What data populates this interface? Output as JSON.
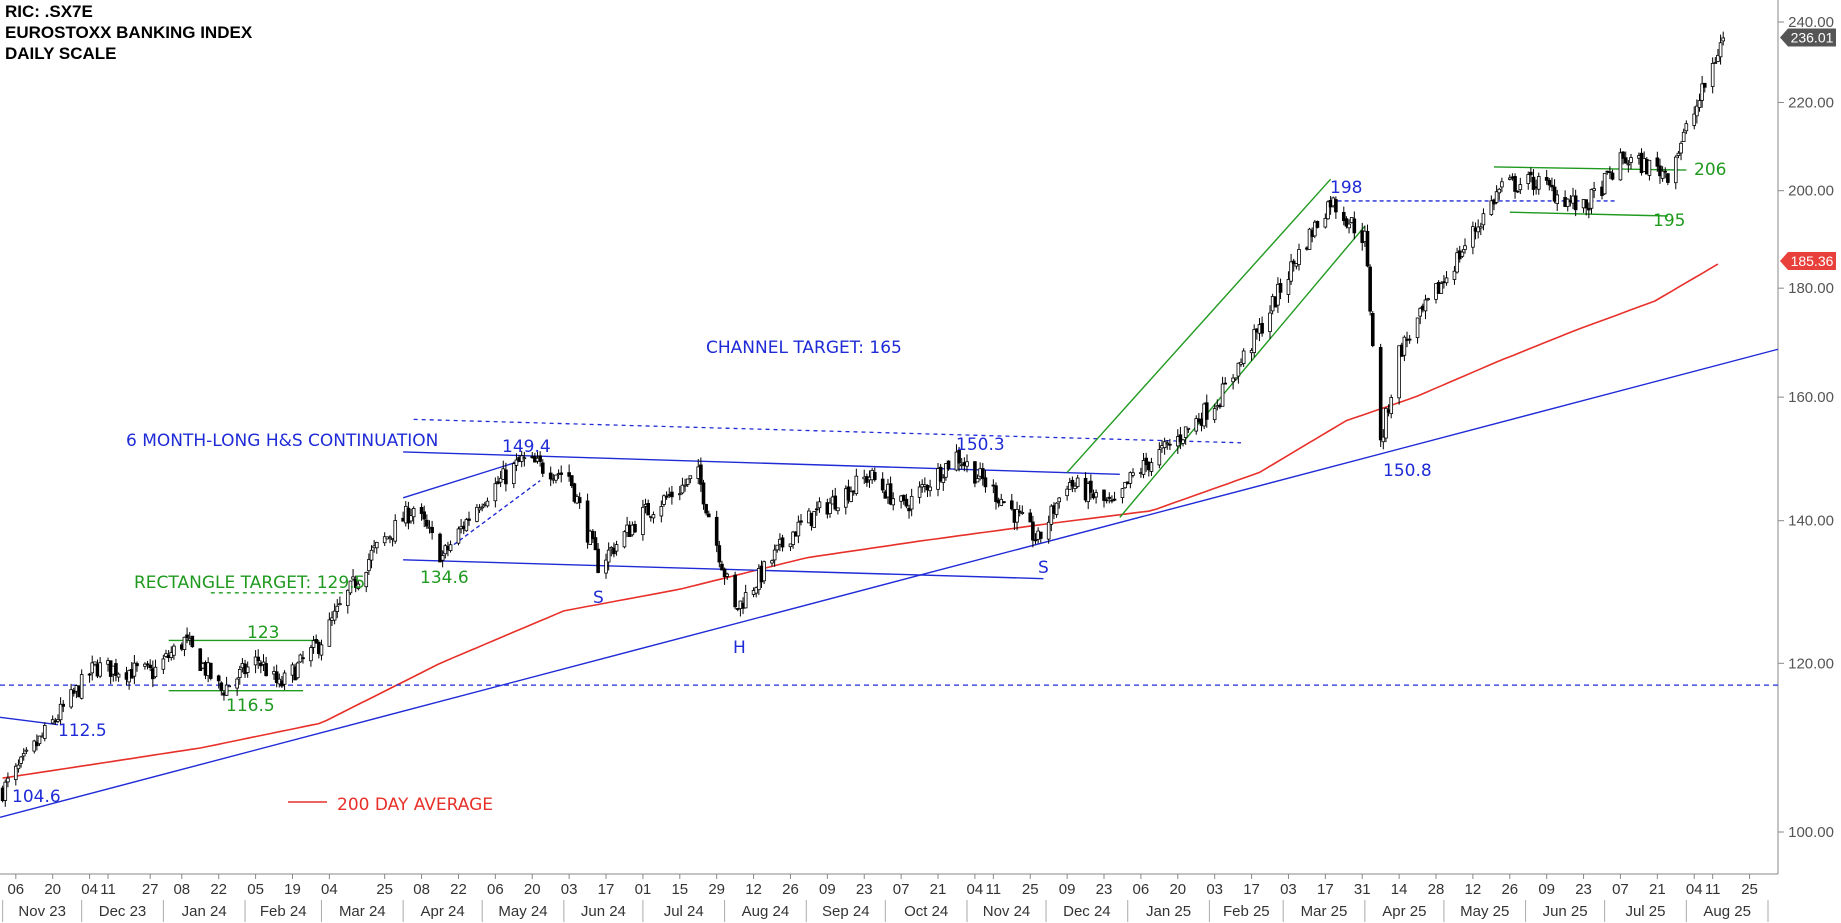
{
  "header": {
    "ric": "RIC: .SX7E",
    "title": "EUROSTOXX BANKING INDEX",
    "scale": "DAILY SCALE"
  },
  "colors": {
    "candle": "#000000",
    "ma": "#e8302a",
    "blue": "#1f2bd6",
    "green": "#1f9a1f",
    "last_badge": "#555555",
    "ma_badge": "#e8403a"
  },
  "chart_data": {
    "type": "candlestick",
    "scale": "log",
    "ylim": [
      96,
      243
    ],
    "xlim": [
      "2023-10-31",
      "2025-08-31"
    ],
    "y_ticks": [
      "100.00",
      "120.00",
      "140.00",
      "160.00",
      "180.00",
      "200.00",
      "220.00",
      "240.00"
    ],
    "x_day_ticks": [
      "06",
      "20",
      "04",
      "11",
      "27",
      "08",
      "22",
      "05",
      "19",
      "04",
      "25",
      "08",
      "22",
      "06",
      "20",
      "03",
      "17",
      "01",
      "15",
      "29",
      "12",
      "26",
      "09",
      "23",
      "07",
      "21",
      "04",
      "11",
      "25",
      "09",
      "23",
      "06",
      "20",
      "03",
      "17",
      "03",
      "17",
      "31",
      "14",
      "28",
      "12",
      "26",
      "09",
      "23",
      "07",
      "21",
      "04",
      "11",
      "25"
    ],
    "x_month_labels": [
      "Nov 23",
      "Dec 23",
      "Jan 24",
      "Feb 24",
      "Mar 24",
      "Apr 24",
      "May 24",
      "Jun 24",
      "Jul 24",
      "Aug 24",
      "Sep 24",
      "Oct 24",
      "Nov 24",
      "Dec 24",
      "Jan 25",
      "Feb 25",
      "Mar 25",
      "Apr 25",
      "May 25",
      "Jun 25",
      "Jul 25",
      "Aug 25"
    ],
    "close_path": [
      {
        "x": "2023-11-01",
        "y": 104.6
      },
      {
        "x": "2023-11-20",
        "y": 112.5
      },
      {
        "x": "2023-12-06",
        "y": 119.5
      },
      {
        "x": "2023-12-28",
        "y": 118.8
      },
      {
        "x": "2024-01-09",
        "y": 123
      },
      {
        "x": "2024-01-23",
        "y": 116.5
      },
      {
        "x": "2024-02-06",
        "y": 120.5
      },
      {
        "x": "2024-02-14",
        "y": 117
      },
      {
        "x": "2024-02-29",
        "y": 122.5
      },
      {
        "x": "2024-03-20",
        "y": 135
      },
      {
        "x": "2024-04-05",
        "y": 142
      },
      {
        "x": "2024-04-16",
        "y": 134.6
      },
      {
        "x": "2024-04-30",
        "y": 143
      },
      {
        "x": "2024-05-16",
        "y": 149.4
      },
      {
        "x": "2024-06-03",
        "y": 147
      },
      {
        "x": "2024-06-14",
        "y": 133.5
      },
      {
        "x": "2024-07-01",
        "y": 141
      },
      {
        "x": "2024-07-22",
        "y": 147
      },
      {
        "x": "2024-08-05",
        "y": 127
      },
      {
        "x": "2024-08-26",
        "y": 138
      },
      {
        "x": "2024-09-06",
        "y": 141.5
      },
      {
        "x": "2024-09-25",
        "y": 147
      },
      {
        "x": "2024-10-08",
        "y": 142
      },
      {
        "x": "2024-10-28",
        "y": 150.3
      },
      {
        "x": "2024-11-15",
        "y": 143
      },
      {
        "x": "2024-11-28",
        "y": 137
      },
      {
        "x": "2024-12-09",
        "y": 146
      },
      {
        "x": "2024-12-27",
        "y": 142
      },
      {
        "x": "2025-01-03",
        "y": 147
      },
      {
        "x": "2025-01-20",
        "y": 153
      },
      {
        "x": "2025-02-05",
        "y": 160
      },
      {
        "x": "2025-02-20",
        "y": 172
      },
      {
        "x": "2025-03-06",
        "y": 186
      },
      {
        "x": "2025-03-19",
        "y": 198
      },
      {
        "x": "2025-04-01",
        "y": 190
      },
      {
        "x": "2025-04-07",
        "y": 152
      },
      {
        "x": "2025-04-14",
        "y": 168
      },
      {
        "x": "2025-05-05",
        "y": 185
      },
      {
        "x": "2025-05-23",
        "y": 201
      },
      {
        "x": "2025-06-05",
        "y": 202
      },
      {
        "x": "2025-06-23",
        "y": 196
      },
      {
        "x": "2025-07-08",
        "y": 207
      },
      {
        "x": "2025-07-25",
        "y": 204
      },
      {
        "x": "2025-08-05",
        "y": 219
      },
      {
        "x": "2025-08-15",
        "y": 236
      }
    ],
    "ma200": [
      {
        "x": "2023-11-01",
        "y": 106
      },
      {
        "x": "2024-01-15",
        "y": 109.5
      },
      {
        "x": "2024-03-01",
        "y": 112.5
      },
      {
        "x": "2024-04-15",
        "y": 120
      },
      {
        "x": "2024-06-01",
        "y": 127
      },
      {
        "x": "2024-07-15",
        "y": 130
      },
      {
        "x": "2024-09-01",
        "y": 134.5
      },
      {
        "x": "2024-10-15",
        "y": 137
      },
      {
        "x": "2024-12-01",
        "y": 139.5
      },
      {
        "x": "2025-01-10",
        "y": 141.5
      },
      {
        "x": "2025-02-20",
        "y": 147.5
      },
      {
        "x": "2025-03-25",
        "y": 156
      },
      {
        "x": "2025-04-20",
        "y": 160
      },
      {
        "x": "2025-05-20",
        "y": 166
      },
      {
        "x": "2025-06-20",
        "y": 172
      },
      {
        "x": "2025-07-20",
        "y": 177.5
      },
      {
        "x": "2025-08-15",
        "y": 185.36
      }
    ],
    "last_price": "236.01",
    "ma_last": "185.36",
    "annotations": {
      "hs_title": "6 MONTH-LONG H&S CONTINUATION",
      "channel_target": "CHANNEL TARGET: 165",
      "rect_target": "RECTANGLE TARGET: 129.5",
      "ma_legend": "200 DAY AVERAGE",
      "l_104_6": "104.6",
      "l_112_5": "112.5",
      "l_123": "123",
      "l_116_5": "116.5",
      "l_134_6": "134.6",
      "l_149_4": "149.4",
      "l_150_3": "150.3",
      "l_s1": "S",
      "l_h": "H",
      "l_s2": "S",
      "l_198": "198",
      "l_150_8": "150.8",
      "l_206": "206",
      "l_195": "195"
    }
  }
}
